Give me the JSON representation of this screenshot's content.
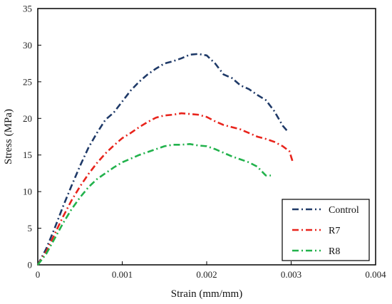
{
  "chart_data": {
    "type": "line",
    "xlabel": "Strain (mm/mm)",
    "ylabel": "Stress (MPa)",
    "xlim": [
      0,
      0.004
    ],
    "ylim": [
      0,
      35
    ],
    "x_ticks": [
      "0",
      "0.001",
      "0.002",
      "0.003",
      "0.004"
    ],
    "y_ticks": [
      "0",
      "5",
      "10",
      "15",
      "20",
      "25",
      "30",
      "35"
    ],
    "grid": false,
    "legend_position": "bottom-right",
    "series": [
      {
        "name": "Control",
        "color": "#1f3a68",
        "line_style": "dash-dot",
        "points": [
          [
            0,
            0
          ],
          [
            0.0001,
            2.2
          ],
          [
            0.0002,
            5
          ],
          [
            0.0003,
            8
          ],
          [
            0.0004,
            10.8
          ],
          [
            0.0005,
            13.5
          ],
          [
            0.0006,
            16
          ],
          [
            0.0007,
            18
          ],
          [
            0.0008,
            19.8
          ],
          [
            0.0009,
            20.8
          ],
          [
            0.001,
            22.3
          ],
          [
            0.0011,
            23.8
          ],
          [
            0.0012,
            25
          ],
          [
            0.0013,
            26
          ],
          [
            0.0014,
            26.8
          ],
          [
            0.0015,
            27.5
          ],
          [
            0.0016,
            27.8
          ],
          [
            0.0017,
            28.2
          ],
          [
            0.0018,
            28.7
          ],
          [
            0.0019,
            28.8
          ],
          [
            0.002,
            28.6
          ],
          [
            0.0021,
            27.5
          ],
          [
            0.0022,
            26
          ],
          [
            0.0023,
            25.5
          ],
          [
            0.0024,
            24.5
          ],
          [
            0.0025,
            24
          ],
          [
            0.0026,
            23.2
          ],
          [
            0.0027,
            22.5
          ],
          [
            0.0028,
            21
          ],
          [
            0.0029,
            19
          ],
          [
            0.00296,
            18.2
          ]
        ]
      },
      {
        "name": "R7",
        "color": "#e8241c",
        "line_style": "dash-dot",
        "points": [
          [
            0,
            0
          ],
          [
            0.0001,
            1.8
          ],
          [
            0.0002,
            4.2
          ],
          [
            0.0003,
            6.6
          ],
          [
            0.0004,
            8.8
          ],
          [
            0.0005,
            10.7
          ],
          [
            0.0006,
            12.4
          ],
          [
            0.0007,
            13.9
          ],
          [
            0.0008,
            15.2
          ],
          [
            0.0009,
            16.3
          ],
          [
            0.001,
            17.3
          ],
          [
            0.0011,
            18
          ],
          [
            0.0012,
            18.8
          ],
          [
            0.0013,
            19.5
          ],
          [
            0.0014,
            20.1
          ],
          [
            0.0015,
            20.4
          ],
          [
            0.0016,
            20.5
          ],
          [
            0.0017,
            20.7
          ],
          [
            0.0018,
            20.6
          ],
          [
            0.0019,
            20.5
          ],
          [
            0.002,
            20.2
          ],
          [
            0.0021,
            19.6
          ],
          [
            0.0022,
            19.1
          ],
          [
            0.0023,
            18.8
          ],
          [
            0.0024,
            18.5
          ],
          [
            0.0025,
            18
          ],
          [
            0.0026,
            17.5
          ],
          [
            0.0027,
            17.2
          ],
          [
            0.0028,
            16.8
          ],
          [
            0.0029,
            16.2
          ],
          [
            0.00298,
            15.5
          ],
          [
            0.00302,
            14
          ]
        ]
      },
      {
        "name": "R8",
        "color": "#22b24c",
        "line_style": "dash-dot",
        "points": [
          [
            0,
            0
          ],
          [
            0.0001,
            1.5
          ],
          [
            0.0002,
            3.6
          ],
          [
            0.0003,
            5.7
          ],
          [
            0.0004,
            7.6
          ],
          [
            0.0005,
            9.2
          ],
          [
            0.0006,
            10.6
          ],
          [
            0.0007,
            11.7
          ],
          [
            0.0008,
            12.5
          ],
          [
            0.0009,
            13.3
          ],
          [
            0.001,
            14
          ],
          [
            0.0011,
            14.5
          ],
          [
            0.0012,
            15
          ],
          [
            0.0013,
            15.4
          ],
          [
            0.0014,
            15.8
          ],
          [
            0.0015,
            16.2
          ],
          [
            0.0016,
            16.4
          ],
          [
            0.0017,
            16.4
          ],
          [
            0.0018,
            16.5
          ],
          [
            0.0019,
            16.3
          ],
          [
            0.002,
            16.2
          ],
          [
            0.0021,
            15.8
          ],
          [
            0.0022,
            15.3
          ],
          [
            0.0023,
            14.8
          ],
          [
            0.0024,
            14.4
          ],
          [
            0.0025,
            14
          ],
          [
            0.0026,
            13.4
          ],
          [
            0.0027,
            12.2
          ],
          [
            0.00276,
            12.2
          ]
        ]
      }
    ]
  }
}
